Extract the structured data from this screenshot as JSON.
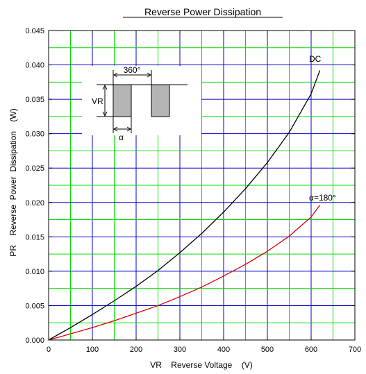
{
  "chart_data": {
    "type": "line",
    "title": "Reverse Power Dissipation",
    "xlabel": "VR    Reverse Voltage    (V)",
    "ylabel": "PR    Reverse  Power  Dissipation    (W)",
    "xlim": [
      0,
      700
    ],
    "ylim": [
      0,
      0.045
    ],
    "xticks": [
      0,
      100,
      200,
      300,
      400,
      500,
      600,
      700
    ],
    "xtick_labels": [
      "0",
      "100",
      "200",
      "300",
      "400",
      "500",
      "600",
      "700"
    ],
    "yticks": [
      0,
      0.005,
      0.01,
      0.015,
      0.02,
      0.025,
      0.03,
      0.035,
      0.04,
      0.045
    ],
    "ytick_labels": [
      "0.000",
      "0.005",
      "0.010",
      "0.015",
      "0.020",
      "0.025",
      "0.030",
      "0.035",
      "0.040",
      "0.045"
    ],
    "grid": true,
    "colors": {
      "major_grid": "#0000cc",
      "minor_grid": "#00dd00",
      "dc": "#000000",
      "alpha180": "#dd0000"
    },
    "series": [
      {
        "name": "DC",
        "color": "#000000",
        "x": [
          0,
          50,
          100,
          150,
          200,
          250,
          300,
          350,
          400,
          450,
          500,
          550,
          600,
          620
        ],
        "y": [
          0,
          0.0018,
          0.0037,
          0.0057,
          0.0078,
          0.0101,
          0.0127,
          0.0155,
          0.0186,
          0.022,
          0.0258,
          0.0302,
          0.0358,
          0.0392
        ]
      },
      {
        "name": "α=180°",
        "color": "#dd0000",
        "x": [
          0,
          50,
          100,
          150,
          200,
          250,
          300,
          350,
          400,
          450,
          500,
          550,
          600,
          620
        ],
        "y": [
          0,
          0.0009,
          0.0018,
          0.0028,
          0.0039,
          0.005,
          0.0063,
          0.0077,
          0.0093,
          0.011,
          0.0129,
          0.0151,
          0.0179,
          0.0196
        ]
      }
    ],
    "annotations": {
      "dc": "DC",
      "alpha180": "α=180°"
    },
    "inset": {
      "angle_label": "360°",
      "vr_label": "VR",
      "alpha_label": "α"
    }
  }
}
